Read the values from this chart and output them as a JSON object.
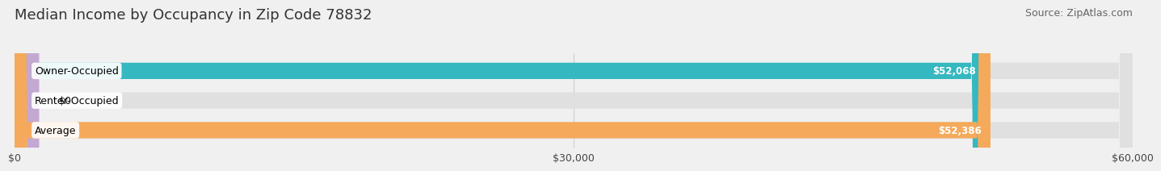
{
  "title": "Median Income by Occupancy in Zip Code 78832",
  "source": "Source: ZipAtlas.com",
  "categories": [
    "Owner-Occupied",
    "Renter-Occupied",
    "Average"
  ],
  "values": [
    52068,
    0,
    52386
  ],
  "bar_colors": [
    "#35b8c0",
    "#c3a8d1",
    "#f5a95a"
  ],
  "value_labels": [
    "$52,068",
    "$0",
    "$52,386"
  ],
  "xlim": [
    0,
    60000
  ],
  "xticks": [
    0,
    30000,
    60000
  ],
  "xtick_labels": [
    "$0",
    "$30,000",
    "$60,000"
  ],
  "bar_height": 0.55,
  "background_color": "#f0f0f0",
  "title_fontsize": 13,
  "source_fontsize": 9,
  "label_fontsize": 9,
  "value_fontsize": 8.5
}
